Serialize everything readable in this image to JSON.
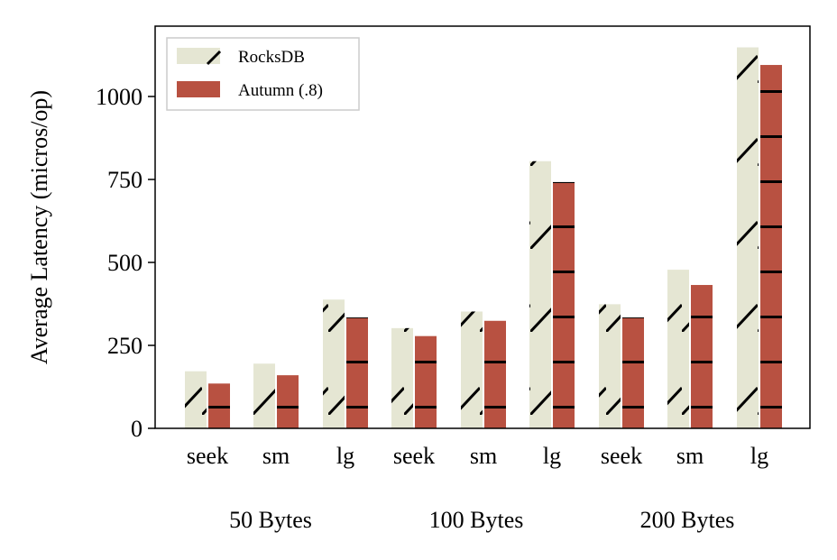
{
  "chart_data": {
    "type": "bar",
    "ylabel": "Average Latency (micros/op)",
    "ylim": [
      0,
      1200
    ],
    "yticks": [
      0,
      250,
      500,
      750,
      1000
    ],
    "legend_position": "top-left",
    "grid": false,
    "groups": [
      {
        "label": "50 Bytes",
        "categories": [
          "seek",
          "sm",
          "lg"
        ]
      },
      {
        "label": "100 Bytes",
        "categories": [
          "seek",
          "sm",
          "lg"
        ]
      },
      {
        "label": "200 Bytes",
        "categories": [
          "seek",
          "sm",
          "lg"
        ]
      }
    ],
    "categories": [
      "seek",
      "sm",
      "lg",
      "seek",
      "sm",
      "lg",
      "seek",
      "sm",
      "lg"
    ],
    "series": [
      {
        "name": "RocksDB",
        "color": "#e5e6d3",
        "hatch": "diagonal",
        "values": [
          172,
          195,
          388,
          302,
          352,
          805,
          374,
          478,
          1148
        ]
      },
      {
        "name": "Autumn (.8)",
        "color": "#b85141",
        "hatch": "horizontal",
        "values": [
          135,
          160,
          334,
          278,
          324,
          742,
          334,
          432,
          1095
        ]
      }
    ]
  }
}
